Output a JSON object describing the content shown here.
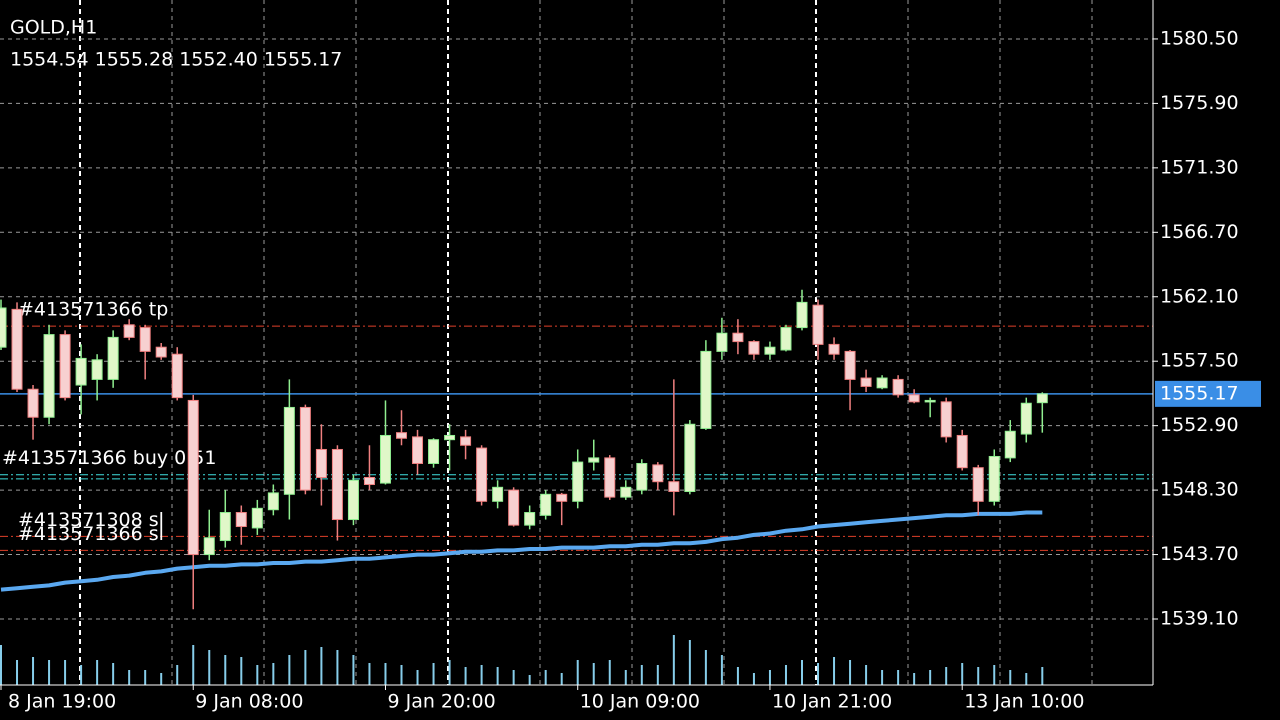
{
  "chart_data": {
    "type": "candlestick",
    "title": "GOLD,H1",
    "subtitle": "1554.54 1555.28 1552.40 1555.17",
    "categories": [
      "8 Jan 19:00",
      null,
      null,
      null,
      null,
      null,
      null,
      null,
      null,
      null,
      null,
      null,
      "9 Jan 08:00",
      null,
      null,
      null,
      null,
      null,
      null,
      null,
      null,
      null,
      null,
      null,
      "9 Jan 20:00",
      null,
      null,
      null,
      null,
      null,
      null,
      null,
      null,
      null,
      null,
      null,
      "10 Jan 09:00",
      null,
      null,
      null,
      null,
      null,
      null,
      null,
      null,
      null,
      null,
      null,
      "10 Jan 21:00",
      null,
      null,
      null,
      null,
      null,
      null,
      null,
      null,
      null,
      null,
      null,
      "13 Jan 10:00",
      null,
      null,
      null,
      null,
      null
    ],
    "open": [
      1558.5,
      1561.2,
      1555.5,
      1553.5,
      1559.4,
      1555.8,
      1556.2,
      1556.2,
      1560.1,
      1559.9,
      1558.5,
      1558.0,
      1554.7,
      1543.7,
      1544.7,
      1546.7,
      1545.6,
      1546.9,
      1548.0,
      1554.2,
      1551.2,
      1551.2,
      1546.2,
      1549.2,
      1548.8,
      1552.4,
      1552.1,
      1550.2,
      1551.9,
      1552.1,
      1551.3,
      1547.5,
      1548.3,
      1545.8,
      1546.5,
      1548.0,
      1547.5,
      1550.3,
      1550.6,
      1547.8,
      1548.3,
      1550.1,
      1548.9,
      1548.2,
      1552.7,
      1558.2,
      1559.5,
      1558.9,
      1558.0,
      1558.3,
      1559.9,
      1561.5,
      1558.7,
      1558.2,
      1556.3,
      1555.6,
      1556.2,
      1555.1,
      1554.6,
      1554.6,
      1552.2,
      1549.9,
      1547.5,
      1550.6,
      1552.3,
      1554.54
    ],
    "high": [
      1561.9,
      1561.7,
      1555.8,
      1560.1,
      1559.7,
      1558.7,
      1558.0,
      1559.7,
      1560.5,
      1560.1,
      1558.8,
      1558.5,
      1555.1,
      1546.9,
      1548.3,
      1547.2,
      1547.6,
      1548.7,
      1556.2,
      1554.4,
      1553.0,
      1551.5,
      1549.4,
      1551.5,
      1554.7,
      1554.0,
      1552.6,
      1552.0,
      1553.0,
      1552.6,
      1551.5,
      1549.0,
      1548.5,
      1547.2,
      1548.3,
      1548.1,
      1551.2,
      1551.9,
      1550.8,
      1549.0,
      1550.5,
      1550.3,
      1556.2,
      1553.3,
      1559.0,
      1560.6,
      1560.5,
      1559.0,
      1558.9,
      1560.1,
      1562.6,
      1561.9,
      1559.2,
      1558.3,
      1556.9,
      1556.5,
      1556.5,
      1555.5,
      1554.9,
      1554.9,
      1552.6,
      1550.1,
      1551.2,
      1553.3,
      1554.9,
      1555.28
    ],
    "low": [
      1558.3,
      1555.3,
      1551.9,
      1553.0,
      1554.7,
      1553.7,
      1554.7,
      1555.6,
      1559.0,
      1556.2,
      1557.6,
      1554.7,
      1539.8,
      1543.3,
      1544.2,
      1544.4,
      1545.1,
      1546.5,
      1546.2,
      1548.0,
      1547.2,
      1544.7,
      1545.8,
      1548.3,
      1548.7,
      1551.5,
      1549.4,
      1549.9,
      1549.7,
      1550.5,
      1547.2,
      1547.0,
      1545.7,
      1545.5,
      1546.2,
      1545.8,
      1547.0,
      1549.7,
      1547.6,
      1547.6,
      1548.0,
      1548.3,
      1546.5,
      1548.0,
      1552.6,
      1557.6,
      1558.0,
      1557.6,
      1557.6,
      1558.2,
      1559.7,
      1557.6,
      1557.6,
      1554.0,
      1555.3,
      1555.5,
      1554.9,
      1554.5,
      1553.5,
      1551.7,
      1549.7,
      1546.5,
      1547.2,
      1550.3,
      1551.7,
      1552.4
    ],
    "close": [
      1561.3,
      1555.5,
      1553.5,
      1559.4,
      1554.9,
      1557.7,
      1557.6,
      1559.2,
      1559.2,
      1558.2,
      1557.8,
      1554.9,
      1543.7,
      1544.9,
      1546.7,
      1545.7,
      1547.0,
      1548.1,
      1554.2,
      1548.3,
      1549.2,
      1546.2,
      1549.0,
      1548.7,
      1552.2,
      1552.0,
      1550.2,
      1551.9,
      1552.2,
      1551.5,
      1547.5,
      1548.5,
      1545.8,
      1546.7,
      1548.0,
      1547.5,
      1550.3,
      1550.6,
      1547.8,
      1548.5,
      1550.2,
      1548.9,
      1548.2,
      1553.0,
      1558.2,
      1559.5,
      1558.9,
      1558.0,
      1558.5,
      1559.9,
      1561.7,
      1558.7,
      1558.0,
      1556.2,
      1555.7,
      1556.3,
      1555.1,
      1554.6,
      1554.7,
      1552.1,
      1549.9,
      1547.5,
      1550.7,
      1552.5,
      1554.5,
      1555.17
    ],
    "ma": [
      1541.2,
      1541.3,
      1541.4,
      1541.5,
      1541.7,
      1541.8,
      1541.9,
      1542.1,
      1542.2,
      1542.4,
      1542.5,
      1542.7,
      1542.8,
      1542.9,
      1542.9,
      1543.0,
      1543.0,
      1543.1,
      1543.1,
      1543.2,
      1543.2,
      1543.3,
      1543.4,
      1543.4,
      1543.5,
      1543.6,
      1543.7,
      1543.7,
      1543.8,
      1543.9,
      1543.9,
      1544.0,
      1544.0,
      1544.1,
      1544.1,
      1544.2,
      1544.2,
      1544.2,
      1544.3,
      1544.3,
      1544.4,
      1544.4,
      1544.5,
      1544.5,
      1544.6,
      1544.8,
      1544.9,
      1545.1,
      1545.2,
      1545.4,
      1545.5,
      1545.7,
      1545.8,
      1545.9,
      1546.0,
      1546.1,
      1546.2,
      1546.3,
      1546.4,
      1546.5,
      1546.5,
      1546.6,
      1546.6,
      1546.6,
      1546.7,
      1546.7
    ],
    "volume": [
      800,
      500,
      560,
      500,
      500,
      400,
      500,
      440,
      300,
      300,
      240,
      400,
      800,
      700,
      600,
      560,
      400,
      440,
      600,
      700,
      760,
      700,
      600,
      440,
      440,
      400,
      300,
      440,
      500,
      360,
      400,
      360,
      300,
      200,
      300,
      240,
      500,
      440,
      500,
      300,
      400,
      400,
      1000,
      900,
      700,
      600,
      360,
      240,
      300,
      400,
      500,
      440,
      560,
      500,
      400,
      300,
      300,
      240,
      300,
      360,
      440,
      360,
      400,
      300,
      240,
      360
    ],
    "levels": [
      {
        "label": "#413571366 tp",
        "value": 1560.0,
        "color": "#e0402a"
      },
      {
        "label": "#413571366 buy 0.51",
        "value": 1549.4,
        "color": "#40e0e0"
      },
      {
        "label": null,
        "value": 1549.1,
        "color": "#40e0e0"
      },
      {
        "label": "#413571308 sl",
        "value": 1545.0,
        "color": "#e0402a"
      },
      {
        "label": "#413571366 sl",
        "value": 1544.0,
        "color": "#e0402a"
      }
    ],
    "ylim": [
      1534.39,
      1583.28
    ],
    "yticks": [
      {
        "value": 1580.5,
        "label": "1580.50"
      },
      {
        "value": 1575.9,
        "label": "1575.90"
      },
      {
        "value": 1571.3,
        "label": "1571.30"
      },
      {
        "value": 1566.7,
        "label": "1566.70"
      },
      {
        "value": 1562.1,
        "label": "1562.10"
      },
      {
        "value": 1557.5,
        "label": "1557.50"
      },
      {
        "value": 1552.9,
        "label": "1552.90"
      },
      {
        "value": 1548.3,
        "label": "1548.30"
      },
      {
        "value": 1543.7,
        "label": "1543.70"
      },
      {
        "value": 1539.1,
        "label": "1539.10"
      }
    ],
    "grid": true,
    "up_color": "#90ee90",
    "down_color": "#f08080",
    "ma_color": "#5aa8f0",
    "volume_color": "#87ceeb",
    "bid_color": "#3a8ee6"
  }
}
